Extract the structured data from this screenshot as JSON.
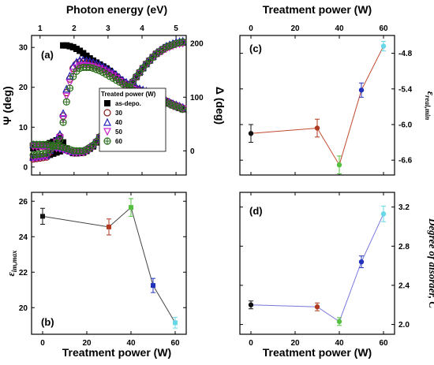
{
  "chart_data": [
    {
      "id": "a",
      "type": "line",
      "panel_label": "(a)",
      "title": "",
      "x_top_label": "Photon energy (eV)",
      "xlim": [
        0.75,
        5.3
      ],
      "x_ticks": [
        1,
        2,
        3,
        4,
        5
      ],
      "ylabel_left": "Ψ (deg)",
      "ylim_left": [
        -2,
        33
      ],
      "y_ticks_left": [
        0,
        10,
        20,
        30
      ],
      "ylabel_right": "Δ (deg)",
      "ylim_right": [
        -45,
        215
      ],
      "y_ticks_right": [
        0,
        100,
        200
      ],
      "legend_title": "Treated power (W)",
      "legend_position": "center-right",
      "series": [
        {
          "name": "as-depo.",
          "color": "#000000",
          "marker": "square",
          "psi": {
            "x": [
              0.8,
              1.2,
              1.6,
              1.65,
              1.8,
              2.0,
              2.2,
              2.5,
              2.8,
              3.0,
              3.2,
              3.4,
              3.6,
              3.8,
              4.0,
              4.3,
              4.6,
              4.9,
              5.2
            ],
            "y": [
              2.5,
              2.8,
              4.0,
              30.5,
              30.5,
              30.0,
              29.0,
              27.0,
              25.5,
              24.5,
              23.0,
              21.5,
              20.5,
              19.5,
              19.0,
              18.0,
              17.0,
              15.5,
              14.5
            ]
          },
          "delta": {
            "x": [
              0.8,
              1.2,
              1.5,
              1.6,
              1.8,
              2.0,
              2.3,
              2.6,
              2.8,
              3.0,
              3.2,
              3.5,
              3.8,
              4.1,
              4.4,
              4.7,
              5.0,
              5.2
            ],
            "y": [
              5,
              12,
              20,
              25,
              2,
              -5,
              -3,
              10,
              30,
              55,
              75,
              105,
              135,
              160,
              180,
              193,
              200,
              202
            ]
          }
        },
        {
          "name": "30",
          "color": "#8b1a1a",
          "marker": "circle",
          "psi": {
            "x": [
              0.8,
              1.2,
              1.6,
              1.8,
              2.0,
              2.2,
              2.5,
              2.8,
              3.0,
              3.2,
              3.4,
              3.6,
              3.8,
              4.0,
              4.3,
              4.6,
              4.9,
              5.2
            ],
            "y": [
              2.0,
              2.5,
              8.0,
              20.0,
              25.5,
              26.5,
              26.0,
              25.0,
              24.0,
              23.0,
              21.5,
              20.5,
              19.8,
              19.0,
              18.0,
              17.0,
              15.8,
              14.8
            ]
          },
          "delta": {
            "x": [
              0.8,
              1.2,
              1.6,
              2.0,
              2.3,
              2.6,
              2.8,
              3.0,
              3.2,
              3.5,
              3.8,
              4.1,
              4.4,
              4.7,
              5.0,
              5.2
            ],
            "y": [
              10,
              8,
              5,
              -3,
              -2,
              12,
              30,
              55,
              75,
              105,
              135,
              160,
              180,
              192,
              200,
              202
            ]
          }
        },
        {
          "name": "40",
          "color": "#2222bb",
          "marker": "triangle",
          "psi": {
            "x": [
              0.8,
              1.2,
              1.6,
              1.8,
              2.0,
              2.2,
              2.5,
              2.8,
              3.0,
              3.2,
              3.4,
              3.6,
              3.8,
              4.0,
              4.3,
              4.6,
              4.9,
              5.2
            ],
            "y": [
              2.5,
              3.0,
              8.5,
              21.0,
              26.0,
              27.0,
              26.5,
              25.5,
              24.5,
              23.5,
              22.0,
              21.0,
              20.0,
              19.5,
              18.5,
              17.0,
              16.0,
              15.0
            ]
          },
          "delta": {
            "x": [
              0.8,
              1.2,
              1.6,
              2.0,
              2.3,
              2.6,
              2.8,
              3.0,
              3.2,
              3.5,
              3.8,
              4.1,
              4.4,
              4.7,
              5.0,
              5.2
            ],
            "y": [
              12,
              10,
              6,
              -2,
              0,
              14,
              32,
              57,
              77,
              108,
              138,
              162,
              182,
              195,
              203,
              205
            ]
          }
        },
        {
          "name": "50",
          "color": "#cc22cc",
          "marker": "triangle-down",
          "psi": {
            "x": [
              0.8,
              1.2,
              1.6,
              1.8,
              2.0,
              2.2,
              2.5,
              2.8,
              3.0,
              3.2,
              3.4,
              3.6,
              3.8,
              4.0,
              4.3,
              4.6,
              4.9,
              5.2
            ],
            "y": [
              2.2,
              2.7,
              7.5,
              19.0,
              24.5,
              25.5,
              25.2,
              24.5,
              23.5,
              22.5,
              21.0,
              20.0,
              19.2,
              18.5,
              17.5,
              16.5,
              15.3,
              14.5
            ]
          },
          "delta": {
            "x": [
              0.8,
              1.2,
              1.6,
              2.0,
              2.3,
              2.6,
              2.8,
              3.0,
              3.2,
              3.5,
              3.8,
              4.1,
              4.4,
              4.7,
              5.0,
              5.2
            ],
            "y": [
              8,
              7,
              4,
              -4,
              -3,
              10,
              28,
              52,
              73,
              103,
              133,
              158,
              178,
              190,
              198,
              200
            ]
          }
        },
        {
          "name": "60",
          "color": "#2a6e1a",
          "marker": "circle-cross",
          "psi": {
            "x": [
              0.8,
              1.2,
              1.6,
              1.8,
              2.0,
              2.2,
              2.5,
              2.8,
              3.0,
              3.2,
              3.4,
              3.6,
              3.8,
              4.0,
              4.3,
              4.6,
              4.9,
              5.2
            ],
            "y": [
              3.0,
              3.5,
              7.0,
              17.5,
              23.5,
              25.0,
              25.0,
              24.0,
              23.0,
              22.0,
              21.0,
              20.0,
              19.0,
              18.5,
              17.5,
              16.5,
              15.5,
              14.5
            ]
          },
          "delta": {
            "x": [
              0.8,
              1.2,
              1.6,
              2.0,
              2.3,
              2.6,
              2.8,
              3.0,
              3.2,
              3.5,
              3.8,
              4.1,
              4.4,
              4.7,
              5.0,
              5.2
            ],
            "y": [
              12,
              12,
              8,
              0,
              0,
              12,
              30,
              55,
              75,
              106,
              136,
              160,
              180,
              193,
              200,
              203
            ]
          }
        }
      ]
    },
    {
      "id": "b",
      "type": "line",
      "panel_label": "(b)",
      "title": "",
      "xlabel": "Treatment power (W)",
      "ylabel": "ε_im,max",
      "ylabel_main": "ε",
      "ylabel_sub": "im,max",
      "xlim": [
        -5,
        65
      ],
      "ylim": [
        18.5,
        26.5
      ],
      "x_ticks": [
        0,
        20,
        40,
        60
      ],
      "y_ticks": [
        20,
        22,
        24,
        26
      ],
      "line_color": "#444444",
      "points": [
        {
          "x": 0,
          "y": 25.15,
          "err": 0.45,
          "color": "#111111"
        },
        {
          "x": 30,
          "y": 24.55,
          "err": 0.45,
          "color": "#b03a20"
        },
        {
          "x": 40,
          "y": 25.65,
          "err": 0.5,
          "color": "#55c040"
        },
        {
          "x": 50,
          "y": 21.25,
          "err": 0.4,
          "color": "#2233bb"
        },
        {
          "x": 60,
          "y": 19.15,
          "err": 0.3,
          "color": "#66d8e8"
        }
      ]
    },
    {
      "id": "c",
      "type": "line",
      "panel_label": "(c)",
      "title": "",
      "x_top_label": "Treatment power (W)",
      "ylabel": "ε_real,min",
      "ylabel_main": "ε",
      "ylabel_sub": "real,min",
      "xlim": [
        -5,
        65
      ],
      "ylim": [
        -6.85,
        -4.5
      ],
      "x_ticks": [
        0,
        20,
        40,
        60
      ],
      "y_ticks": [
        -6.6,
        -6.0,
        -5.4,
        -4.8
      ],
      "y_tick_labels": [
        "-6.6",
        "-6.0",
        "-5.4",
        "-4.8"
      ],
      "line_color": "#c0482e",
      "points": [
        {
          "x": 0,
          "y": -6.15,
          "err": 0.15,
          "color": "#111111"
        },
        {
          "x": 30,
          "y": -6.06,
          "err": 0.15,
          "color": "#b03a20"
        },
        {
          "x": 40,
          "y": -6.68,
          "err": 0.15,
          "color": "#55c040"
        },
        {
          "x": 50,
          "y": -5.42,
          "err": 0.12,
          "color": "#2233bb"
        },
        {
          "x": 60,
          "y": -4.68,
          "err": 0.08,
          "color": "#66d8e8"
        }
      ]
    },
    {
      "id": "d",
      "type": "line",
      "panel_label": "(d)",
      "title": "",
      "xlabel": "Treatment power (W)",
      "ylabel": "Degree of disorder, C",
      "xlim": [
        -5,
        65
      ],
      "ylim": [
        1.9,
        3.35
      ],
      "x_ticks": [
        0,
        20,
        40,
        60
      ],
      "y_ticks": [
        2.0,
        2.4,
        2.8,
        3.2
      ],
      "y_tick_labels": [
        "2.0",
        "2.4",
        "2.8",
        "3.2"
      ],
      "line_color": "#7777dd",
      "points": [
        {
          "x": 0,
          "y": 2.2,
          "err": 0.04,
          "color": "#111111"
        },
        {
          "x": 30,
          "y": 2.18,
          "err": 0.04,
          "color": "#b03a20"
        },
        {
          "x": 40,
          "y": 2.03,
          "err": 0.04,
          "color": "#55c040"
        },
        {
          "x": 50,
          "y": 2.64,
          "err": 0.06,
          "color": "#2233bb"
        },
        {
          "x": 60,
          "y": 3.13,
          "err": 0.08,
          "color": "#66d8e8"
        }
      ]
    }
  ]
}
